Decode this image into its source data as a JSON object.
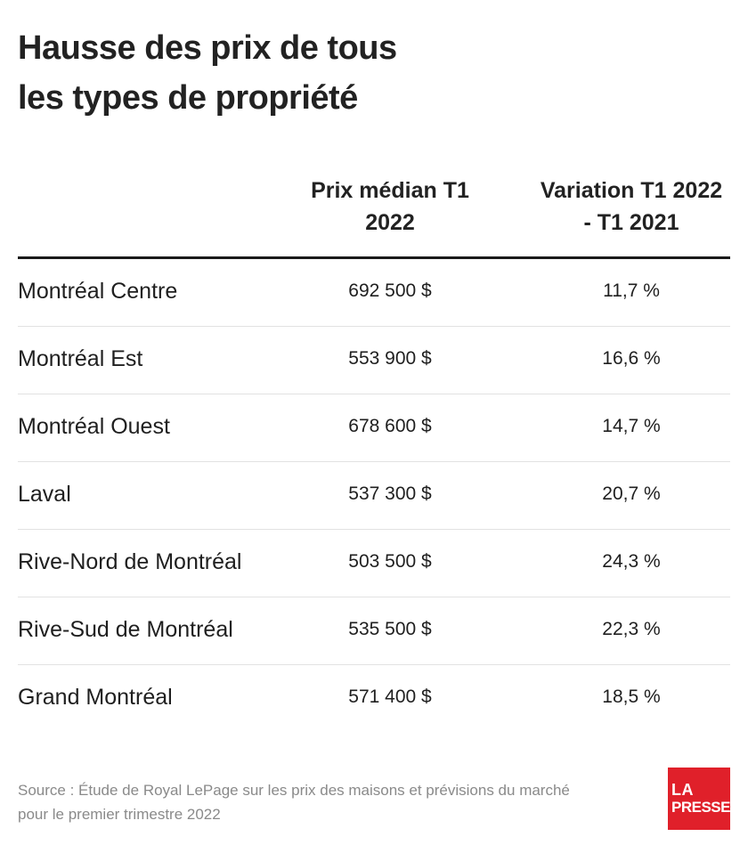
{
  "title": [
    "Hausse des prix de tous",
    "les types de propriété"
  ],
  "chart_data": {
    "type": "table",
    "columns": [
      "",
      "Prix médian T1 2022",
      "Variation T1 2022 - T1 2021"
    ],
    "header_lines": {
      "price": [
        "Prix médian T1",
        "2022"
      ],
      "variation": [
        "Variation T1 2022",
        "- T1 2021"
      ]
    },
    "rows": [
      {
        "region": "Montréal Centre",
        "price": "692 500 $",
        "variation": "11,7 %"
      },
      {
        "region": "Montréal Est",
        "price": "553 900 $",
        "variation": "16,6 %"
      },
      {
        "region": "Montréal Ouest",
        "price": "678 600 $",
        "variation": "14,7 %"
      },
      {
        "region": "Laval",
        "price": "537 300 $",
        "variation": "20,7 %"
      },
      {
        "region": "Rive-Nord de Montréal",
        "price": "503 500 $",
        "variation": "24,3 %"
      },
      {
        "region": "Rive-Sud de Montréal",
        "price": "535 500 $",
        "variation": "22,3 %"
      },
      {
        "region": "Grand Montréal",
        "price": "571 400 $",
        "variation": "18,5 %"
      }
    ]
  },
  "source": [
    "Source : Étude de Royal LePage sur les prix des maisons et prévisions du marché",
    "pour le premier trimestre 2022"
  ],
  "logo": {
    "line1": "LA",
    "line2": "PRESSE",
    "color": "#e0202a"
  },
  "colors": {
    "rule": "#1a1a1a",
    "divider": "#e2e2e2",
    "source_text": "#8a8a8a"
  }
}
